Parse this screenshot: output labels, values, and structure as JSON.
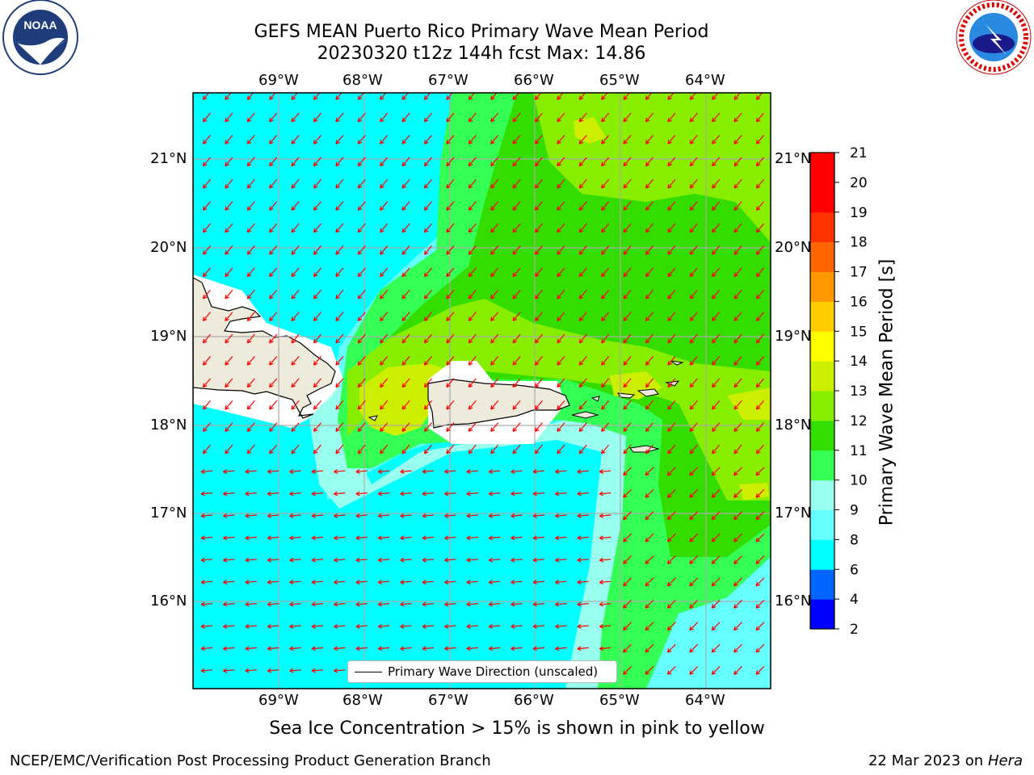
{
  "title": {
    "line1": "GEFS MEAN Puerto Rico Primary Wave Mean Period",
    "line2": "20230320 t12z 144h fcst   Max: 14.86"
  },
  "axes": {
    "lon_labels": [
      "69°W",
      "68°W",
      "67°W",
      "66°W",
      "65°W",
      "64°W"
    ],
    "lat_labels": [
      "21°N",
      "20°N",
      "19°N",
      "18°N",
      "17°N",
      "16°N"
    ]
  },
  "legend": {
    "label": "Primary Wave Direction (unscaled)"
  },
  "colorbar": {
    "title": "Primary Wave Mean Period [s]",
    "ticks": [
      "2",
      "4",
      "6",
      "8",
      "9",
      "10",
      "11",
      "12",
      "13",
      "14",
      "15",
      "16",
      "17",
      "18",
      "19",
      "20",
      "21"
    ],
    "colors": [
      "#0000ff",
      "#0066ff",
      "#00ffff",
      "#66ffff",
      "#99ffee",
      "#33ff55",
      "#33dd00",
      "#88ee00",
      "#ccee00",
      "#ffff00",
      "#ffcc00",
      "#ff9900",
      "#ff6600",
      "#ff3300",
      "#ff0000"
    ]
  },
  "note": "Sea Ice Concentration > 15% is shown in pink to yellow",
  "footer": {
    "org": "NCEP/EMC/Verification Post Processing Product Generation Branch",
    "date": "22 Mar 2023 on",
    "host": "Hera"
  },
  "logos": {
    "noaa": "NOAA",
    "nws": "NATIONAL WEATHER SERVICE"
  },
  "chart_data": {
    "type": "heatmap",
    "title": "GEFS MEAN Puerto Rico Primary Wave Mean Period",
    "subtitle": "20230320 t12z 144h fcst   Max: 14.86",
    "max_value": 14.86,
    "unit": "s",
    "colorbar_label": "Primary Wave Mean Period [s]",
    "levels": [
      2,
      4,
      6,
      8,
      9,
      10,
      11,
      12,
      13,
      14,
      15,
      16,
      17,
      18,
      19,
      20,
      21
    ],
    "lon_range": [
      -70.0,
      -63.25
    ],
    "lat_range": [
      15.0,
      21.75
    ],
    "vector_field": "Primary Wave Direction (unscaled)",
    "arrow_color": "#ff0000",
    "grid": true
  }
}
